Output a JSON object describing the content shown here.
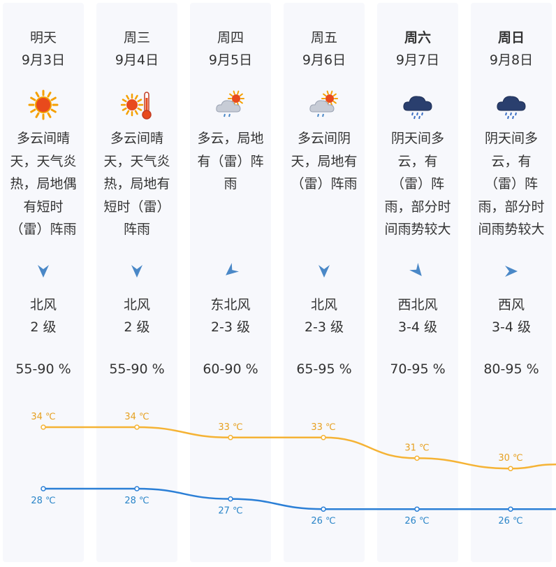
{
  "days": [
    {
      "day": "明天",
      "bold": false,
      "date": "9月3日",
      "icon": "sun-icon",
      "desc": [
        "多云间晴",
        "天，天气炎",
        "热，局地偶",
        "有短时",
        "（雷）阵雨"
      ],
      "wind_icon": "wind-arrow-south-icon",
      "wind_rotate": 0,
      "wind_dir": "北风",
      "wind_level": "2 级",
      "humidity": "55-90 %",
      "high": 34,
      "high_label": "34 ℃",
      "low": 28,
      "low_label": "28 ℃"
    },
    {
      "day": "周三",
      "bold": false,
      "date": "9月4日",
      "icon": "sun-thermometer-icon",
      "desc": [
        "多云间晴",
        "天，天气炎",
        "热，局地有",
        "短时（雷）",
        "阵雨"
      ],
      "wind_icon": "wind-arrow-south-icon",
      "wind_rotate": 0,
      "wind_dir": "北风",
      "wind_level": "2 级",
      "humidity": "55-90 %",
      "high": 34,
      "high_label": "34 ℃",
      "low": 28,
      "low_label": "28 ℃"
    },
    {
      "day": "周四",
      "bold": false,
      "date": "9月5日",
      "icon": "cloud-sun-rain-icon",
      "desc": [
        "多云，局地",
        "有（雷）阵",
        "雨"
      ],
      "wind_icon": "wind-arrow-southwest-icon",
      "wind_rotate": 50,
      "wind_dir": "东北风",
      "wind_level": "2-3 级",
      "humidity": "60-90 %",
      "high": 33,
      "high_label": "33 ℃",
      "low": 27,
      "low_label": "27 ℃"
    },
    {
      "day": "周五",
      "bold": false,
      "date": "9月6日",
      "icon": "cloud-sun-rain-icon",
      "desc": [
        "多云间阴",
        "天，局地有",
        "（雷）阵雨"
      ],
      "wind_icon": "wind-arrow-south-icon",
      "wind_rotate": 0,
      "wind_dir": "北风",
      "wind_level": "2-3 级",
      "humidity": "65-95 %",
      "high": 33,
      "high_label": "33 ℃",
      "low": 26,
      "low_label": "26 ℃"
    },
    {
      "day": "周六",
      "bold": true,
      "date": "9月7日",
      "icon": "dark-cloud-rain-icon",
      "desc": [
        "阴天间多",
        "云，有",
        "（雷）阵",
        "雨，部分时",
        "间雨势较大"
      ],
      "wind_icon": "wind-arrow-southeast-icon",
      "wind_rotate": -40,
      "wind_dir": "西北风",
      "wind_level": "3-4 级",
      "humidity": "70-95 %",
      "high": 31,
      "high_label": "31 ℃",
      "low": 26,
      "low_label": "26 ℃"
    },
    {
      "day": "周日",
      "bold": true,
      "date": "9月8日",
      "icon": "dark-cloud-rain-icon",
      "desc": [
        "阴天间多",
        "云，有",
        "（雷）阵",
        "雨，部分时",
        "间雨势较大"
      ],
      "wind_icon": "wind-arrow-east-icon",
      "wind_rotate": -90,
      "wind_dir": "西风",
      "wind_level": "3-4 级",
      "humidity": "80-95 %",
      "high": 30,
      "high_label": "30 ℃",
      "low": 26,
      "low_label": "26 ℃"
    }
  ],
  "colors": {
    "high_line": "#f5b335",
    "high_text": "#e6a020",
    "low_line": "#2b7fd6",
    "low_text": "#2a85c8",
    "wind_arrow": "#4a88c7",
    "column_bg": "#f7f8fc"
  },
  "chart_data": {
    "type": "line",
    "categories": [
      "9月3日",
      "9月4日",
      "9月5日",
      "9月6日",
      "9月7日",
      "9月8日"
    ],
    "series": [
      {
        "values": [
          34,
          34,
          33,
          33,
          31,
          30
        ]
      },
      {
        "values": [
          28,
          28,
          27,
          26,
          26,
          26
        ]
      }
    ],
    "grid": false
  }
}
